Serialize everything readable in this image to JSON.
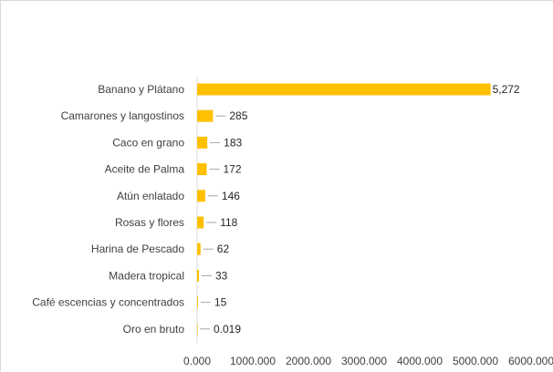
{
  "chart_data": {
    "type": "bar",
    "orientation": "horizontal",
    "categories": [
      "Banano y Plátano",
      "Camarones y langostinos",
      "Caco en grano",
      "Aceite de Palma",
      "Atún enlatado",
      "Rosas y flores",
      "Harina de Pescado",
      "Madera tropical",
      "Café escencias y concentrados",
      "Oro en bruto"
    ],
    "values": [
      5272,
      285,
      183,
      172,
      146,
      118,
      62,
      33,
      15,
      0.019
    ],
    "value_labels": [
      "5,272",
      "285",
      "183",
      "172",
      "146",
      "118",
      "62",
      "33",
      "15",
      "0.019"
    ],
    "x_ticks": [
      0,
      1000,
      2000,
      3000,
      4000,
      5000,
      6000
    ],
    "x_tick_labels": [
      "0.000",
      "1000.000",
      "2000.000",
      "3000.000",
      "4000.000",
      "5000.000",
      "6000.000"
    ],
    "xlim": [
      0,
      6000
    ],
    "title": "",
    "xlabel": "",
    "ylabel": "",
    "grid": false,
    "bar_color": "#ffc000"
  }
}
